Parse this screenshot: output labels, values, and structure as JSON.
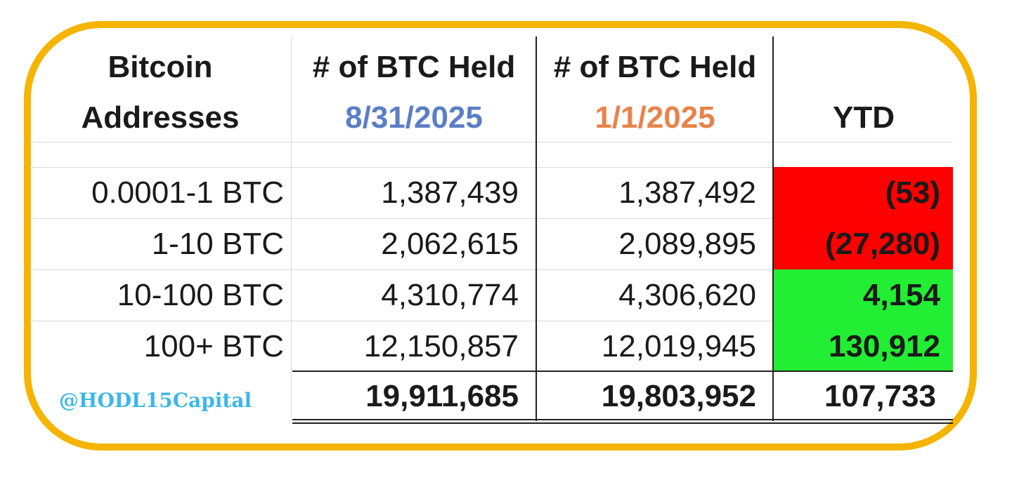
{
  "chart_data": {
    "type": "table",
    "columns": [
      {
        "line1": "Bitcoin",
        "line2": "Addresses",
        "line2_color": "#1a1a1a"
      },
      {
        "line1": "# of BTC Held",
        "line2": "8/31/2025",
        "line2_color": "#5b7ec5"
      },
      {
        "line1": "# of BTC Held",
        "line2": "1/1/2025",
        "line2_color": "#e8834a"
      },
      {
        "line1": "",
        "line2": "YTD",
        "line2_color": "#1a1a1a"
      }
    ],
    "rows": [
      {
        "label": "0.0001-1 BTC",
        "v1": "1,387,439",
        "v2": "1,387,492",
        "ytd": "(53)",
        "ytd_value": -53,
        "ytd_color": "#ff0000"
      },
      {
        "label": "1-10 BTC",
        "v1": "2,062,615",
        "v2": "2,089,895",
        "ytd": "(27,280)",
        "ytd_value": -27280,
        "ytd_color": "#ff0000"
      },
      {
        "label": "10-100 BTC",
        "v1": "4,310,774",
        "v2": "4,306,620",
        "ytd": "4,154",
        "ytd_value": 4154,
        "ytd_color": "#22ee33"
      },
      {
        "label": "100+ BTC",
        "v1": "12,150,857",
        "v2": "12,019,945",
        "ytd": "130,912",
        "ytd_value": 130912,
        "ytd_color": "#22ee33"
      }
    ],
    "totals": {
      "label": "@HODL15Capital",
      "v1": "19,911,685",
      "v2": "19,803,952",
      "ytd": "107,733"
    }
  },
  "frame_color": "#f5b400"
}
